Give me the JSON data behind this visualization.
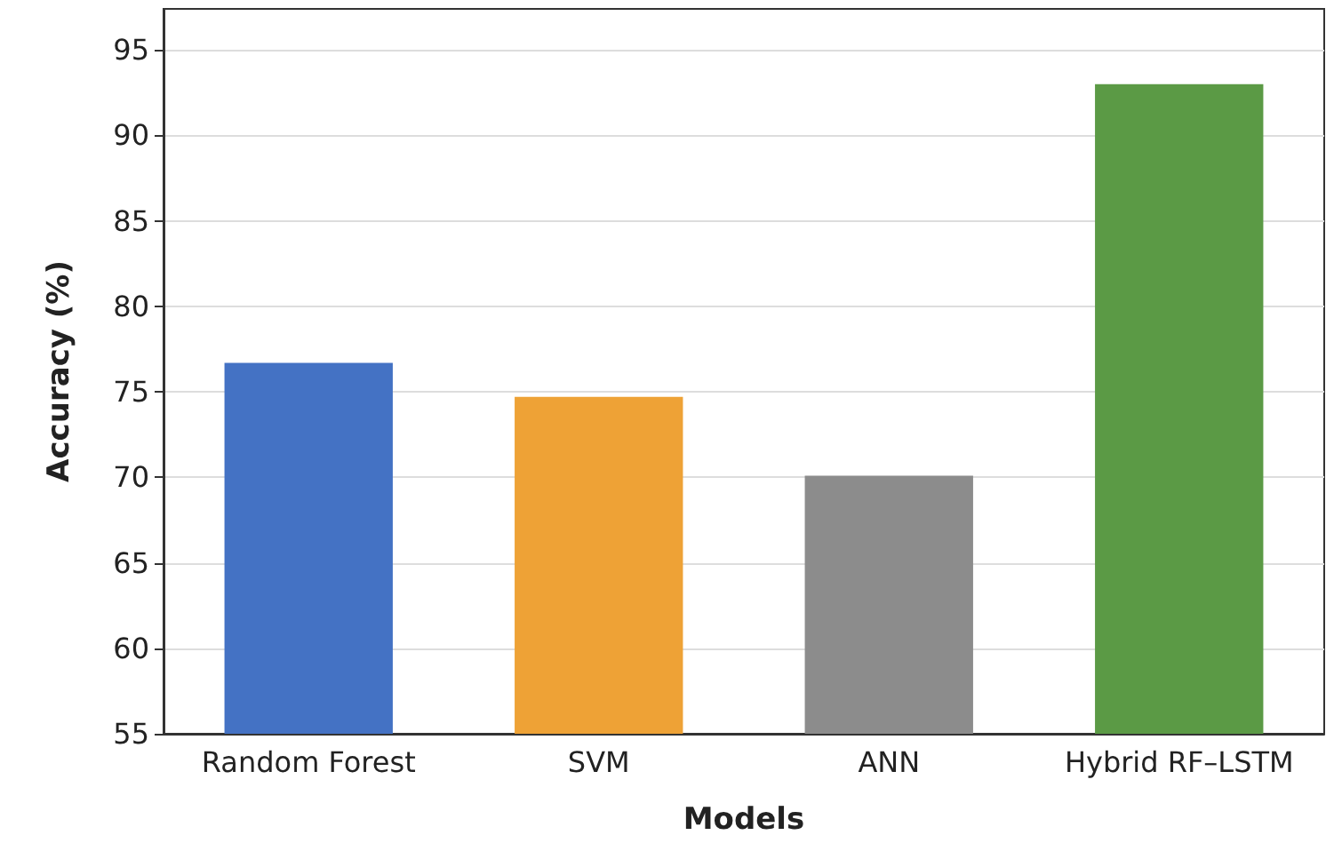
{
  "chart_data": {
    "type": "bar",
    "xlabel": "Models",
    "ylabel": "Accuracy (%)",
    "categories": [
      "Random Forest",
      "SVM",
      "ANN",
      "Hybrid RF–LSTM"
    ],
    "values": [
      76.7,
      74.7,
      70.1,
      93.0
    ],
    "colors": [
      "#4472c4",
      "#eea236",
      "#8c8c8c",
      "#5b9a45"
    ],
    "ylim": [
      55,
      97.4
    ],
    "yticks": [
      55,
      60,
      65,
      70,
      75,
      80,
      85,
      90,
      95
    ],
    "grid": "y"
  }
}
